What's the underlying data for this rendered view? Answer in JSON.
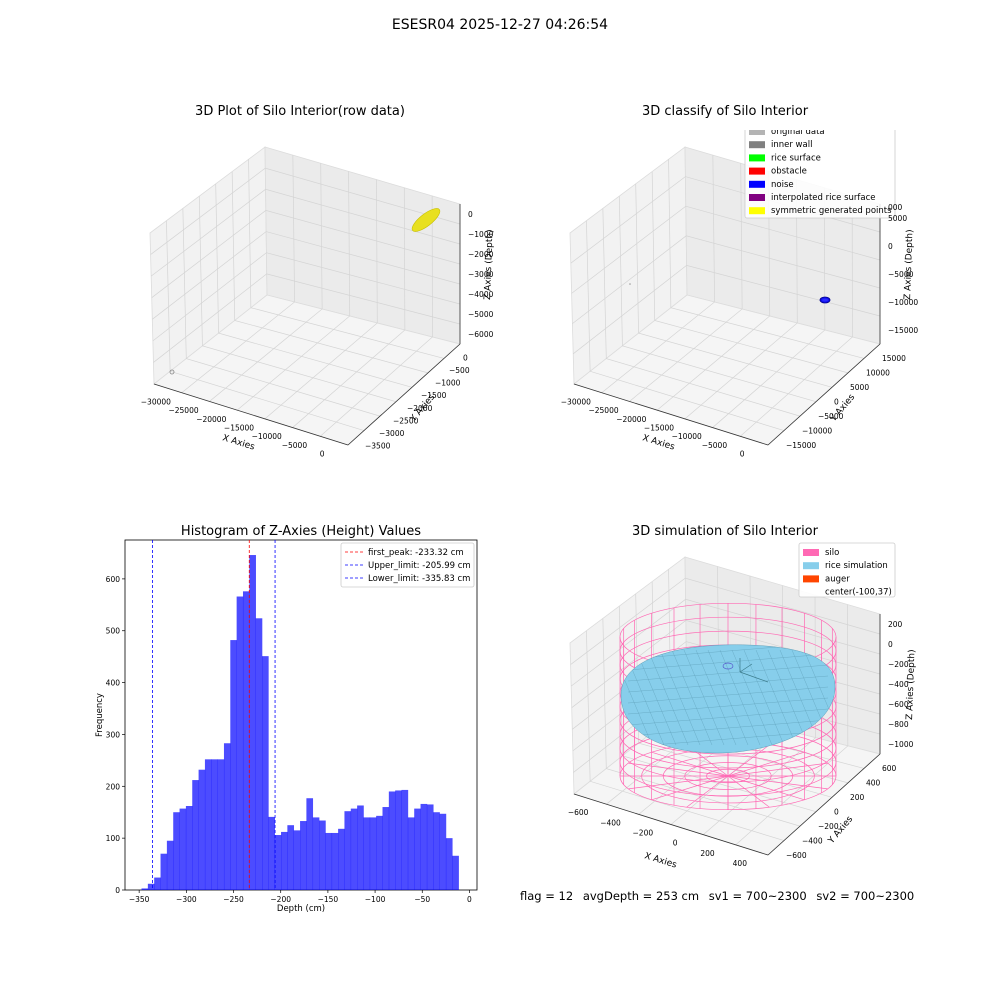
{
  "figure_title": "ESESR04 2025-12-27 04:26:54",
  "panels": {
    "raw": {
      "title": "3D Plot of Silo Interior(row data)",
      "xlabel": "X Axies",
      "ylabel": "Y Axies",
      "zlabel": "Z Axies (Depth)",
      "xticks": [
        "−30000",
        "−25000",
        "−20000",
        "−15000",
        "−10000",
        "−5000",
        "0"
      ],
      "yticks": [
        "0",
        "−500",
        "−1000",
        "−1500",
        "−2000",
        "−2500",
        "−3000",
        "−3500"
      ],
      "zticks": [
        "0",
        "−1000",
        "−2000",
        "−3000",
        "−4000",
        "−5000",
        "−6000"
      ]
    },
    "classify": {
      "title": "3D classify of Silo Interior",
      "xlabel": "X Axies",
      "ylabel": "Y Axies",
      "zlabel": "Z Axies (Depth)",
      "xticks": [
        "−30000",
        "−25000",
        "−20000",
        "−15000",
        "−10000",
        "−5000",
        "0"
      ],
      "yticks": [
        "15000",
        "10000",
        "5000",
        "0",
        "−5000",
        "−10000",
        "−15000"
      ],
      "zticks": [
        "5000",
        "0",
        "−5000",
        "−10000",
        "−15000"
      ],
      "ztick_partial": "000",
      "legend": [
        {
          "label": "original data",
          "color": "#b4b4b4"
        },
        {
          "label": "inner wall",
          "color": "#808080"
        },
        {
          "label": "rice surface",
          "color": "#00ff00"
        },
        {
          "label": "obstacle",
          "color": "#ff0000"
        },
        {
          "label": "noise",
          "color": "#0000ff"
        },
        {
          "label": "interpolated rice surface",
          "color": "#800080"
        },
        {
          "label": "symmetric generated points",
          "color": "#ffff00"
        }
      ]
    },
    "simulation": {
      "title": "3D simulation of Silo Interior",
      "xlabel": "X Axies",
      "ylabel": "Y Axies",
      "zlabel": "Z Axies (Depth)",
      "xticks": [
        "−600",
        "−400",
        "−200",
        "0",
        "200",
        "400"
      ],
      "yticks": [
        "600",
        "400",
        "200",
        "0",
        "−200",
        "−400",
        "−600"
      ],
      "zticks": [
        "200",
        "0",
        "−200",
        "−400",
        "−600",
        "−800",
        "−1000"
      ],
      "legend": [
        {
          "label": "silo",
          "color": "#ff69b4"
        },
        {
          "label": "rice simulation",
          "color": "#87ceeb"
        },
        {
          "label": "auger",
          "color": "#ff4500"
        },
        {
          "label": "center(-100,37)",
          "color": ""
        }
      ],
      "colors": {
        "silo": "#ff69b4",
        "rice": "#87ceeb",
        "rice_edge": "#5f9fb8"
      }
    }
  },
  "status": {
    "flag": "flag = 12",
    "avg_depth": "avgDepth = 253 cm",
    "sv1": "sv1 = 700~2300",
    "sv2": "sv2 = 700~2300"
  },
  "chart_data": {
    "type": "bar",
    "title": "Histogram of Z-Axies (Height) Values",
    "xlabel": "Depth (cm)",
    "ylabel": "Frequency",
    "xlim": [
      -365,
      8
    ],
    "ylim": [
      0,
      675
    ],
    "xticks": [
      -350,
      -300,
      -250,
      -200,
      -150,
      -100,
      -50,
      0
    ],
    "yticks": [
      0,
      100,
      200,
      300,
      400,
      500,
      600
    ],
    "bar_color": "#0000ff",
    "bin_start": -347.5,
    "bin_width": 6.72,
    "values": [
      3,
      12,
      24,
      70,
      95,
      150,
      157,
      162,
      212,
      232,
      252,
      252,
      252,
      283,
      482,
      566,
      576,
      646,
      524,
      451,
      141,
      106,
      112,
      125,
      115,
      133,
      177,
      140,
      134,
      110,
      110,
      118,
      152,
      157,
      163,
      140,
      140,
      143,
      160,
      190,
      192,
      193,
      140,
      157,
      166,
      165,
      150,
      147,
      100,
      66
    ],
    "vlines": [
      {
        "label": "first_peak: -233.32 cm",
        "x": -233.32,
        "color": "#ff0000"
      },
      {
        "label": "Upper_limit: -205.99 cm",
        "x": -205.99,
        "color": "#0000ff"
      },
      {
        "label": "Lower_limit: -335.83 cm",
        "x": -335.83,
        "color": "#0000ff"
      }
    ]
  }
}
